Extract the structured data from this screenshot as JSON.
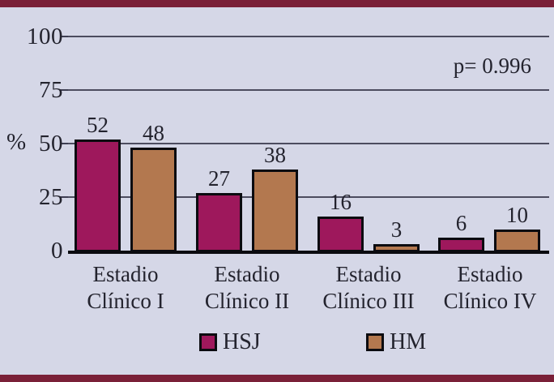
{
  "chart_data": {
    "type": "bar",
    "title": "",
    "ylabel": "%",
    "xlabel": "",
    "categories": [
      [
        "Estadio",
        "Clínico I"
      ],
      [
        "Estadio",
        "Clínico II"
      ],
      [
        "Estadio",
        "Clínico III"
      ],
      [
        "Estadio",
        "Clínico IV"
      ]
    ],
    "series": [
      {
        "name": "HSJ",
        "color": "#9e185c",
        "values": [
          52,
          27,
          16,
          6
        ]
      },
      {
        "name": "HM",
        "color": "#b3784f",
        "values": [
          48,
          38,
          3,
          10
        ]
      }
    ],
    "yticks": [
      0,
      25,
      50,
      75,
      100
    ],
    "ylim": [
      0,
      100
    ],
    "grid": true,
    "legend_position": "bottom",
    "annotation": "p= 0.996",
    "value_labels_shown": true
  },
  "colors": {
    "background": "#d5d7e7",
    "frame_strip": "#7a2038",
    "axis_line": "#0b0b10",
    "gridline": "#2d2d41",
    "text": "#23232e",
    "series_hsj": "#9e185c",
    "series_hm": "#b3784f"
  }
}
